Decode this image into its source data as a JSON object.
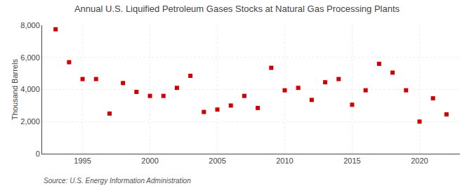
{
  "chart_data": {
    "type": "scatter",
    "title": "Annual U.S. Liquified Petroleum Gases Stocks at Natural Gas Processing Plants",
    "ylabel": "Thousand Barrels",
    "annotation": "Source: U.S. Energy Information Administration",
    "x": [
      1993,
      1994,
      1995,
      1996,
      1997,
      1998,
      1999,
      2000,
      2001,
      2002,
      2003,
      2004,
      2005,
      2006,
      2007,
      2008,
      2009,
      2010,
      2011,
      2012,
      2013,
      2014,
      2015,
      2016,
      2017,
      2018,
      2019,
      2020,
      2021,
      2022
    ],
    "values": [
      7750,
      5700,
      4650,
      4650,
      2500,
      4400,
      3850,
      3600,
      3600,
      4100,
      4850,
      2600,
      2750,
      3000,
      3600,
      2850,
      5350,
      3950,
      4100,
      3350,
      4450,
      4650,
      3050,
      3950,
      5600,
      5050,
      3950,
      2000,
      3450,
      2450
    ],
    "color": "#cc0000",
    "marker": "square",
    "xlim": [
      1992,
      2023
    ],
    "xticks": [
      1995,
      2000,
      2005,
      2010,
      2015,
      2020
    ],
    "ylim": [
      0,
      8000
    ],
    "yticks": [
      0,
      {
        "value": 2000,
        "label": "2,000"
      },
      {
        "value": 4000,
        "label": "4,000"
      },
      {
        "value": 6000,
        "label": "6,000"
      },
      {
        "value": 8000,
        "label": "8,000"
      }
    ],
    "grid": true
  }
}
